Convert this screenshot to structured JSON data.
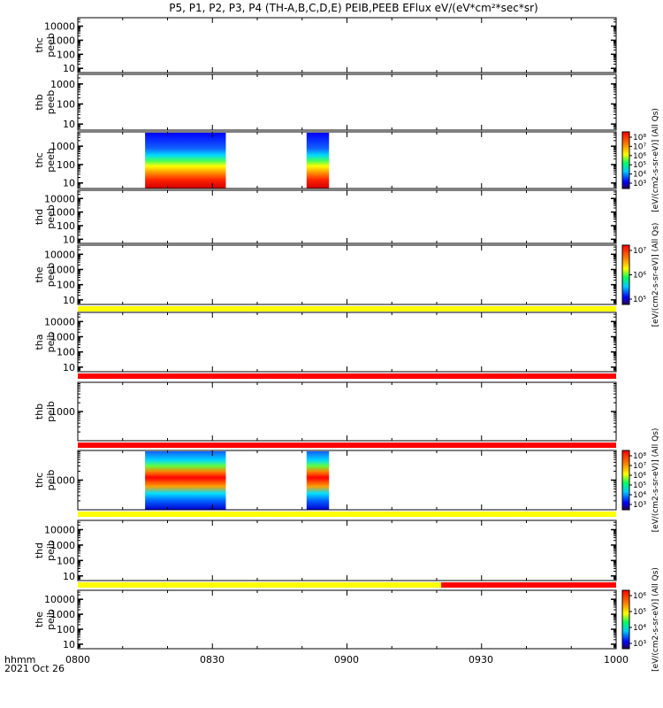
{
  "title": "P5, P1, P2, P3, P4 (TH-A,B,C,D,E) PEIB,PEEB EFlux eV/(eV*cm²*sec*sr)",
  "time_axis": {
    "ticks": [
      "0800",
      "0830",
      "0900",
      "0930",
      "1000"
    ],
    "unit_label": "hhmm",
    "date_label": "2021 Oct 26"
  },
  "colors": {
    "bar_yellow": "#ffff00",
    "bar_red": "#ff0000",
    "background": "#ffffff"
  },
  "chart_data": {
    "type": "heatmap",
    "x_range_minutes": [
      0,
      120
    ],
    "panels": [
      {
        "id": "the-peeb-top",
        "label_line1": "thc",
        "label_line2": "peeb",
        "yticks": [
          "10000",
          "1000",
          "100",
          "10"
        ],
        "log_scale": true,
        "ylim": [
          5,
          40000
        ],
        "blocks": [],
        "note": "label shown as 'thc'"
      },
      {
        "id": "thb-peeb",
        "label_line1": "thb",
        "label_line2": "peeb",
        "yticks": [
          "1000",
          "100",
          "10"
        ],
        "log_scale": true,
        "ylim": [
          5,
          3000
        ],
        "blocks": []
      },
      {
        "id": "thc-peeb",
        "label_line1": "thc",
        "label_line2": "peeb",
        "yticks": [
          "1000",
          "100",
          "10"
        ],
        "log_scale": true,
        "ylim": [
          5,
          6000
        ],
        "blocks": [
          {
            "t_start": 15,
            "t_end": 33
          },
          {
            "t_start": 51,
            "t_end": 56
          }
        ],
        "colorbar": {
          "label": "[eV/(cm2-s-sr-eV)] (All Qs)",
          "ticks": [
            "10⁸",
            "10⁷",
            "10⁶",
            "10⁵",
            "10⁴",
            "10³"
          ]
        }
      },
      {
        "id": "thd-peeb",
        "label_line1": "thd",
        "label_line2": "peeb",
        "yticks": [
          "10000",
          "1000",
          "100",
          "10"
        ],
        "log_scale": true,
        "ylim": [
          5,
          40000
        ],
        "blocks": []
      },
      {
        "id": "the-peeb",
        "label_line1": "the",
        "label_line2": "peeb",
        "yticks": [
          "10000",
          "1000",
          "100",
          "10"
        ],
        "log_scale": true,
        "ylim": [
          5,
          40000
        ],
        "blocks": [],
        "colorbar": {
          "label": "[eV/(cm2-s-sr-eV)] (All Qs)",
          "ticks": [
            "10⁷",
            "10⁶",
            "10⁵"
          ]
        },
        "bottom_bar": {
          "color": "yellow"
        }
      },
      {
        "id": "tha-peib",
        "label_line1": "tha",
        "label_line2": "peib",
        "yticks": [
          "10000",
          "1000",
          "100",
          "10"
        ],
        "log_scale": true,
        "ylim": [
          5,
          40000
        ],
        "blocks": [],
        "bottom_bar": {
          "color": "red"
        }
      },
      {
        "id": "thb-peib",
        "label_line1": "thb",
        "label_line2": "peib",
        "yticks": [
          "1000"
        ],
        "log_scale": true,
        "ylim": [
          100,
          10000
        ],
        "blocks": [],
        "bottom_bar": {
          "color": "red"
        }
      },
      {
        "id": "thc-peib",
        "label_line1": "thc",
        "label_line2": "peib",
        "yticks": [
          "1000"
        ],
        "log_scale": true,
        "ylim": [
          100,
          10000
        ],
        "blocks": [
          {
            "t_start": 15,
            "t_end": 33
          },
          {
            "t_start": 51,
            "t_end": 56
          }
        ],
        "colorbar": {
          "label": "[eV/(cm2-s-sr-eV)] (All Qs)",
          "ticks": [
            "10⁸",
            "10⁷",
            "10⁶",
            "10⁵",
            "10⁴",
            "10³"
          ]
        },
        "bottom_bar": {
          "color": "yellow"
        }
      },
      {
        "id": "thd-peib",
        "label_line1": "thd",
        "label_line2": "peib",
        "yticks": [
          "10000",
          "1000",
          "100",
          "10"
        ],
        "log_scale": true,
        "ylim": [
          5,
          40000
        ],
        "blocks": [],
        "bottom_bar": {
          "color": "yellow_then_red",
          "switch_minute": 81
        }
      },
      {
        "id": "the-peib",
        "label_line1": "the",
        "label_line2": "peib",
        "yticks": [
          "10000",
          "1000",
          "100",
          "10"
        ],
        "log_scale": true,
        "ylim": [
          5,
          40000
        ],
        "blocks": [],
        "colorbar": {
          "label": "[eV/(cm2-s-sr-eV)] (All Qs)",
          "ticks": [
            "10⁶",
            "10⁵",
            "10⁴",
            "10³"
          ]
        }
      }
    ]
  }
}
